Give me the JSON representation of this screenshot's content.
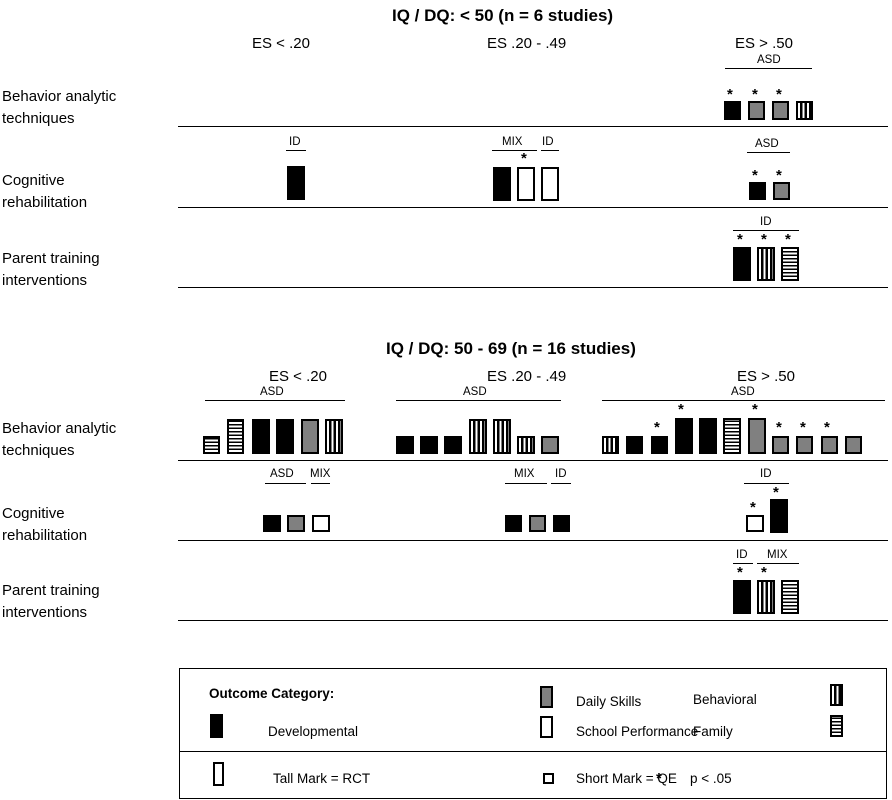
{
  "panels": [
    {
      "title": "IQ / DQ: < 50 (n = 6 studies)",
      "columns": [
        "ES < .20",
        "ES .20 - .49",
        "ES > .50"
      ],
      "rows": [
        {
          "label_lines": [
            "Behavior analytic",
            "techniques"
          ],
          "groups": [
            "ASD"
          ],
          "marks": [
            "Developmental",
            "Daily Skills",
            "Daily Skills",
            "Behavioral"
          ]
        },
        {
          "label_lines": [
            "Cognitive",
            "rehabilitation"
          ],
          "groups": [
            "ID",
            "MIX",
            "ID",
            "ASD"
          ],
          "marks": [
            "Developmental",
            "Developmental",
            "School Performance",
            "School Performance",
            "Developmental",
            "Daily Skills"
          ]
        },
        {
          "label_lines": [
            "Parent training",
            "interventions"
          ],
          "groups": [
            "ID"
          ],
          "marks": [
            "Developmental",
            "Behavioral",
            "Family"
          ]
        }
      ]
    },
    {
      "title": "IQ / DQ: 50 - 69 (n = 16 studies)",
      "columns": [
        "ES < .20",
        "ES .20 - .49",
        "ES > .50"
      ],
      "rows": [
        {
          "label_lines": [
            "Behavior analytic",
            "techniques"
          ],
          "groups": [
            "ASD",
            "ASD",
            "ASD"
          ],
          "marks": [
            "Family",
            "Family",
            "Developmental",
            "Developmental",
            "Daily Skills",
            "Behavioral",
            "Developmental",
            "Developmental",
            "Developmental",
            "Behavioral",
            "Behavioral",
            "Behavioral",
            "Daily Skills",
            "Behavioral",
            "Developmental",
            "Developmental",
            "Developmental",
            "Developmental",
            "Family",
            "Daily Skills",
            "Daily Skills",
            "Daily Skills",
            "Daily Skills",
            "Daily Skills"
          ]
        },
        {
          "label_lines": [
            "Cognitive",
            "rehabilitation"
          ],
          "groups": [
            "ASD",
            "MIX",
            "MIX",
            "ID",
            "ID"
          ],
          "marks": [
            "Developmental",
            "Daily Skills",
            "School Performance",
            "Developmental",
            "Daily Skills",
            "Developmental",
            "School Performance",
            "Developmental"
          ]
        },
        {
          "label_lines": [
            "Parent training",
            "interventions"
          ],
          "groups": [
            "ID",
            "MIX"
          ],
          "marks": [
            "Developmental",
            "Behavioral",
            "Family"
          ]
        }
      ]
    }
  ],
  "significance_symbol": "*",
  "legend": {
    "heading": "Outcome Category:",
    "categories": {
      "developmental": "Developmental",
      "daily": "Daily Skills",
      "school": "School Performance",
      "behavioral": "Behavioral",
      "family": "Family"
    },
    "tall_mark": "Tall Mark = RCT",
    "short_mark": "Short Mark = QE",
    "significance": "p < .05"
  },
  "colors": {
    "developmental": "#000000",
    "daily": "#808080",
    "school": "#ffffff",
    "line": "#000000"
  }
}
